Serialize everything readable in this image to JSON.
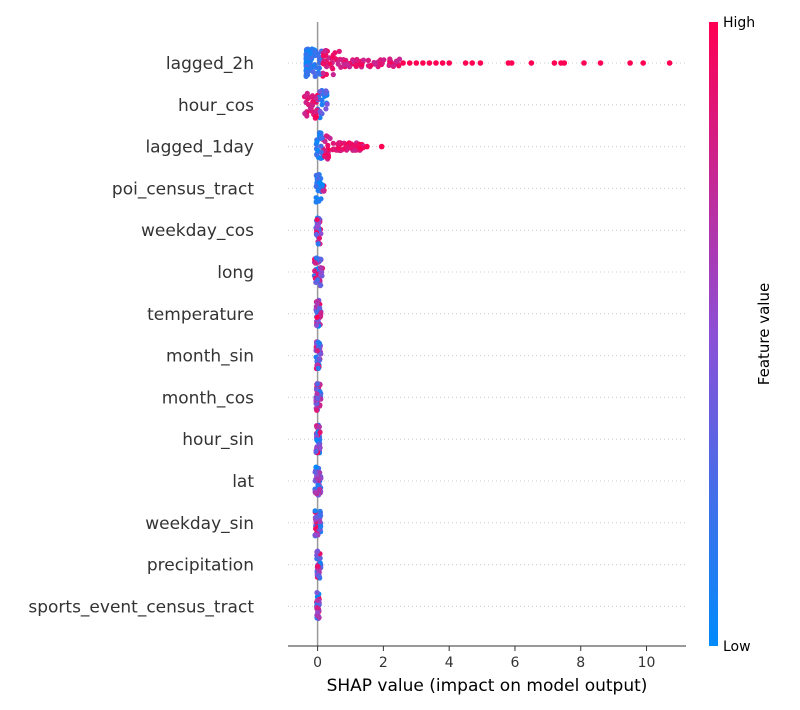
{
  "chart_data": {
    "type": "scatter",
    "subtype": "shap-beeswarm",
    "xlabel": "SHAP value (impact on model output)",
    "xlim": [
      -0.9,
      11.2
    ],
    "xticks": [
      0,
      2,
      4,
      6,
      8,
      10
    ],
    "zero_line": true,
    "colorbar": {
      "title": "Feature value",
      "high_label": "High",
      "low_label": "Low",
      "low_color": "#008bfb",
      "high_color": "#ff0052"
    },
    "features": [
      {
        "name": "lagged_2h",
        "range": [
          -0.35,
          2.5
        ],
        "outliers": [
          {
            "x": 2.6,
            "v": 1
          },
          {
            "x": 2.8,
            "v": 1
          },
          {
            "x": 3.0,
            "v": 1
          },
          {
            "x": 3.2,
            "v": 1
          },
          {
            "x": 3.4,
            "v": 1
          },
          {
            "x": 3.6,
            "v": 1
          },
          {
            "x": 3.8,
            "v": 1
          },
          {
            "x": 4.0,
            "v": 1
          },
          {
            "x": 4.5,
            "v": 1
          },
          {
            "x": 4.7,
            "v": 1
          },
          {
            "x": 4.95,
            "v": 1
          },
          {
            "x": 5.8,
            "v": 1
          },
          {
            "x": 5.9,
            "v": 1
          },
          {
            "x": 6.5,
            "v": 1
          },
          {
            "x": 7.2,
            "v": 1
          },
          {
            "x": 7.4,
            "v": 1
          },
          {
            "x": 7.5,
            "v": 1
          },
          {
            "x": 8.1,
            "v": 1
          },
          {
            "x": 8.6,
            "v": 1
          },
          {
            "x": 9.5,
            "v": 1
          },
          {
            "x": 9.9,
            "v": 1
          },
          {
            "x": 10.7,
            "v": 1
          }
        ]
      },
      {
        "name": "hour_cos",
        "range": [
          -0.4,
          0.3
        ],
        "outliers": []
      },
      {
        "name": "lagged_1day",
        "range": [
          -0.05,
          1.4
        ],
        "outliers": [
          {
            "x": 1.5,
            "v": 1
          },
          {
            "x": 1.95,
            "v": 1
          }
        ]
      },
      {
        "name": "poi_census_tract",
        "range": [
          -0.05,
          0.2
        ],
        "outliers": []
      },
      {
        "name": "weekday_cos",
        "range": [
          -0.05,
          0.1
        ],
        "outliers": []
      },
      {
        "name": "long",
        "range": [
          -0.1,
          0.15
        ],
        "outliers": []
      },
      {
        "name": "temperature",
        "range": [
          -0.05,
          0.1
        ],
        "outliers": []
      },
      {
        "name": "month_sin",
        "range": [
          -0.05,
          0.1
        ],
        "outliers": []
      },
      {
        "name": "month_cos",
        "range": [
          -0.05,
          0.1
        ],
        "outliers": []
      },
      {
        "name": "hour_sin",
        "range": [
          -0.05,
          0.08
        ],
        "outliers": []
      },
      {
        "name": "lat",
        "range": [
          -0.08,
          0.1
        ],
        "outliers": []
      },
      {
        "name": "weekday_sin",
        "range": [
          -0.08,
          0.1
        ],
        "outliers": []
      },
      {
        "name": "precipitation",
        "range": [
          -0.03,
          0.1
        ],
        "outliers": []
      },
      {
        "name": "sports_event_census_tract",
        "range": [
          -0.03,
          0.05
        ],
        "outliers": []
      }
    ]
  }
}
